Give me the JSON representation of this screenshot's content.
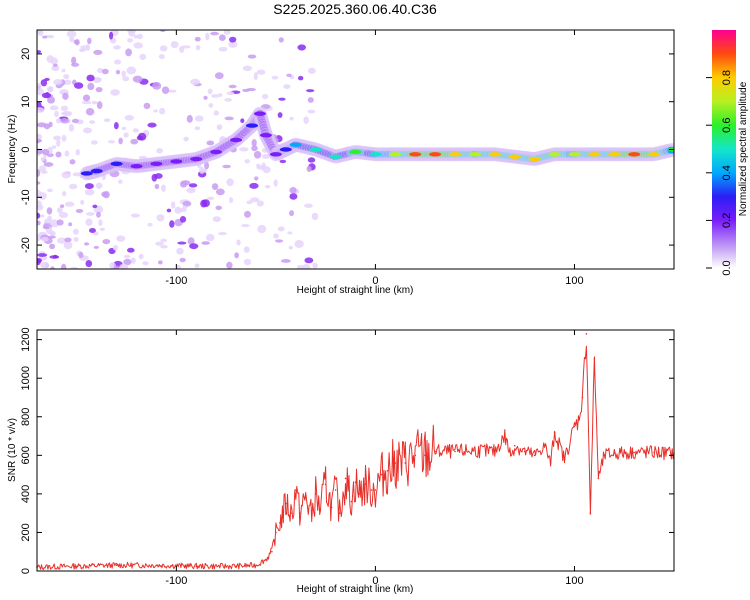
{
  "title": "S225.2025.360.06.40.C36",
  "chart_data": [
    {
      "type": "heatmap",
      "name": "spectrogram",
      "xlabel": "Height of straight line (km)",
      "ylabel": "Frequency (Hz)",
      "xlim": [
        -170,
        150
      ],
      "ylim": [
        -25,
        25
      ],
      "xticks": [
        -100,
        0,
        100
      ],
      "xtick_labels": [
        "-100",
        "0",
        "100"
      ],
      "yticks": [
        20,
        10,
        0,
        -10,
        -20
      ],
      "ytick_labels": [
        "20",
        "10",
        "0",
        "-10",
        "-20"
      ],
      "colorbar": {
        "label": "Normalized spectral amplitude",
        "range": [
          0,
          1
        ],
        "ticks": [
          0.0,
          0.2,
          0.4,
          0.6,
          0.8
        ],
        "tick_labels": [
          "0.0",
          "0.2",
          "0.4",
          "0.6",
          "0.8"
        ]
      },
      "ridge": {
        "description": "dominant frequency track",
        "x": [
          -145,
          -140,
          -130,
          -120,
          -110,
          -100,
          -90,
          -80,
          -70,
          -62,
          -58,
          -55,
          -50,
          -45,
          -40,
          -30,
          -20,
          -10,
          0,
          10,
          20,
          30,
          40,
          50,
          60,
          70,
          80,
          90,
          100,
          110,
          120,
          130,
          140,
          150
        ],
        "y": [
          -5,
          -4.5,
          -3,
          -3.5,
          -3,
          -2.5,
          -2,
          -0.5,
          2,
          5,
          7.5,
          3,
          -1,
          0,
          1,
          0,
          -1.5,
          -0.5,
          -1,
          -1,
          -1,
          -1,
          -1,
          -1,
          -1,
          -1.5,
          -2,
          -1,
          -1,
          -1,
          -1,
          -1,
          -1,
          0
        ],
        "amplitude": [
          0.3,
          0.35,
          0.3,
          0.25,
          0.25,
          0.25,
          0.25,
          0.25,
          0.25,
          0.3,
          0.25,
          0.2,
          0.2,
          0.3,
          0.4,
          0.5,
          0.5,
          0.6,
          0.55,
          0.75,
          0.9,
          0.9,
          0.85,
          0.7,
          0.8,
          0.85,
          0.8,
          0.75,
          0.7,
          0.8,
          0.85,
          0.9,
          0.85,
          0.6
        ]
      }
    },
    {
      "type": "line",
      "name": "snr",
      "xlabel": "Height of straight line (km)",
      "ylabel": "SNR (10 * v/v)",
      "xlim": [
        -170,
        150
      ],
      "ylim": [
        0,
        1250
      ],
      "xticks": [
        -100,
        0,
        100
      ],
      "xtick_labels": [
        "-100",
        "0",
        "100"
      ],
      "yticks": [
        0,
        200,
        400,
        600,
        800,
        1000,
        1200
      ],
      "ytick_labels": [
        "0",
        "200",
        "400",
        "600",
        "800",
        "1000",
        "1200"
      ],
      "color": "#e8302a",
      "series": [
        {
          "name": "SNR",
          "x": [
            -170,
            -150,
            -130,
            -110,
            -90,
            -70,
            -60,
            -55,
            -52,
            -50,
            -48,
            -45,
            -42,
            -40,
            -38,
            -35,
            -32,
            -30,
            -28,
            -25,
            -22,
            -20,
            -18,
            -15,
            -12,
            -10,
            -8,
            -5,
            -2,
            0,
            3,
            6,
            10,
            15,
            20,
            25,
            30,
            40,
            50,
            60,
            65,
            68,
            70,
            75,
            80,
            85,
            88,
            90,
            95,
            100,
            102,
            104,
            106,
            108,
            110,
            112,
            115,
            120,
            130,
            140,
            150
          ],
          "y": [
            20,
            25,
            30,
            30,
            25,
            25,
            30,
            60,
            100,
            200,
            250,
            350,
            300,
            420,
            300,
            380,
            290,
            400,
            320,
            450,
            330,
            420,
            300,
            480,
            360,
            460,
            400,
            450,
            420,
            420,
            500,
            520,
            560,
            560,
            600,
            600,
            620,
            620,
            625,
            620,
            700,
            600,
            650,
            620,
            600,
            650,
            560,
            720,
            580,
            750,
            780,
            900,
            1230,
            300,
            1100,
            480,
            600,
            610,
            615,
            615,
            610
          ]
        }
      ]
    }
  ]
}
